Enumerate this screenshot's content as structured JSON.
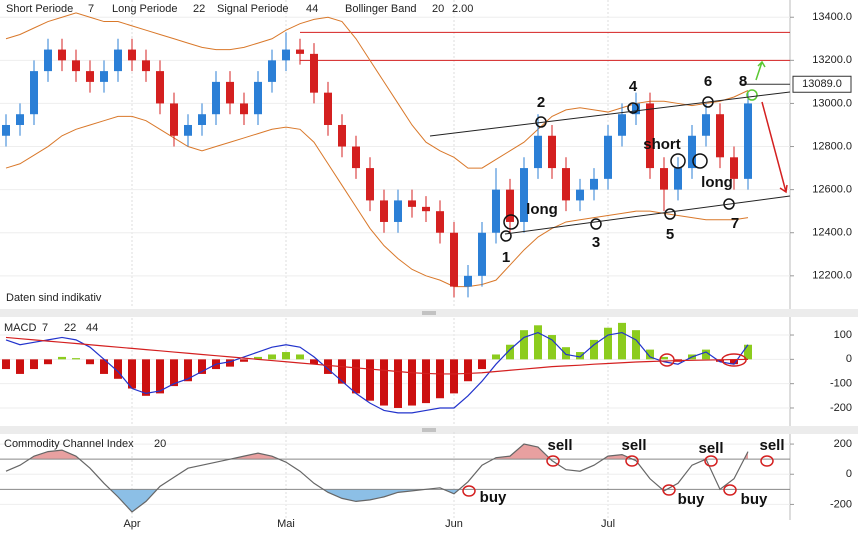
{
  "chart_data": [
    {
      "type": "candlestick",
      "header": [
        {
          "label": "Short Periode",
          "period": 7
        },
        {
          "label": "Long Periode",
          "period": 22
        },
        {
          "label": "Signal Periode",
          "period": 44
        },
        {
          "label": "Bollinger Band",
          "period": 20,
          "width": {
            "value": 2,
            "label": "2.00"
          }
        }
      ],
      "note": "Daten sind indikativ",
      "open": [
        12850,
        12900,
        12950,
        13150,
        13250,
        13200,
        13150,
        13100,
        13150,
        13250,
        13200,
        13150,
        13000,
        12850,
        12900,
        12950,
        13100,
        13000,
        12950,
        13100,
        13200,
        13250,
        13230,
        13050,
        12900,
        12800,
        12700,
        12550,
        12450,
        12550,
        12520,
        12500,
        12400,
        12150,
        12200,
        12400,
        12600,
        12450,
        12700,
        12850,
        12700,
        12550,
        12600,
        12650,
        12850,
        12950,
        13000,
        12700,
        12600,
        12700,
        12850,
        12950,
        12750,
        12650
      ],
      "high": [
        12950,
        13000,
        13200,
        13300,
        13300,
        13250,
        13200,
        13200,
        13300,
        13300,
        13250,
        13200,
        13050,
        12950,
        13000,
        13150,
        13150,
        13050,
        13150,
        13250,
        13330,
        13300,
        13280,
        13100,
        12950,
        12850,
        12750,
        12600,
        12600,
        12600,
        12570,
        12550,
        12450,
        12250,
        12450,
        12700,
        12650,
        12750,
        12950,
        12900,
        12750,
        12650,
        12700,
        12900,
        13000,
        13050,
        13050,
        12750,
        12750,
        12900,
        13000,
        13000,
        12800,
        13050
      ],
      "low": [
        12800,
        12850,
        12900,
        13100,
        13150,
        13100,
        13050,
        13050,
        13100,
        13150,
        13100,
        12950,
        12800,
        12800,
        12850,
        12900,
        12950,
        12900,
        12900,
        13050,
        13150,
        13180,
        13000,
        12850,
        12750,
        12650,
        12500,
        12400,
        12400,
        12470,
        12450,
        12350,
        12100,
        12100,
        12150,
        12350,
        12400,
        12400,
        12650,
        12650,
        12500,
        12500,
        12550,
        12600,
        12800,
        12900,
        12650,
        12500,
        12550,
        12650,
        12800,
        12700,
        12600,
        12600
      ],
      "close": [
        12900,
        12950,
        13150,
        13250,
        13200,
        13150,
        13100,
        13150,
        13250,
        13200,
        13150,
        13000,
        12850,
        12900,
        12950,
        13100,
        13000,
        12950,
        13100,
        13200,
        13250,
        13230,
        13050,
        12900,
        12800,
        12700,
        12550,
        12450,
        12550,
        12520,
        12500,
        12400,
        12150,
        12200,
        12400,
        12600,
        12450,
        12700,
        12850,
        12700,
        12550,
        12600,
        12650,
        12850,
        12950,
        13000,
        12700,
        12600,
        12700,
        12850,
        12950,
        12750,
        12650,
        13000
      ],
      "up_color": "#2b7fd6",
      "down_color": "#d42020",
      "bands": {
        "color": "#d9782a",
        "upper": [
          13300,
          13320,
          13350,
          13380,
          13400,
          13420,
          13400,
          13380,
          13380,
          13360,
          13340,
          13320,
          13300,
          13280,
          13260,
          13250,
          13250,
          13260,
          13280,
          13300,
          13340,
          13370,
          13390,
          13400,
          13380,
          13300,
          13200,
          13100,
          13000,
          12900,
          12820,
          12780,
          12750,
          12700,
          12700,
          12740,
          12780,
          12820,
          12880,
          12940,
          12970,
          12980,
          12970,
          12960,
          12980,
          13000,
          13010,
          13010,
          13000,
          12990,
          13000,
          13010,
          13030,
          13060
        ],
        "lower": [
          12700,
          12720,
          12760,
          12800,
          12850,
          12880,
          12900,
          12920,
          12940,
          12940,
          12920,
          12880,
          12840,
          12800,
          12780,
          12800,
          12820,
          12840,
          12860,
          12880,
          12890,
          12880,
          12820,
          12720,
          12620,
          12520,
          12420,
          12340,
          12280,
          12230,
          12200,
          12180,
          12150,
          12150,
          12160,
          12180,
          12250,
          12320,
          12380,
          12420,
          12450,
          12460,
          12470,
          12480,
          12490,
          12500,
          12500,
          12490,
          12480,
          12470,
          12460,
          12460,
          12460,
          12470
        ]
      },
      "hlines": [
        13330,
        13200
      ],
      "hline_color": "#d42020",
      "last_price": {
        "value": 13089,
        "label": "13089.0"
      },
      "annotations": [
        "1",
        "2",
        "3",
        "4",
        "5",
        "6",
        "7",
        "8",
        "short",
        "long",
        "long"
      ],
      "ylim": [
        12060,
        13480
      ],
      "yticks": [
        {
          "value": 12200,
          "label": "12200.0"
        },
        {
          "value": 12400,
          "label": "12400.0"
        },
        {
          "value": 12600,
          "label": "12600.0"
        },
        {
          "value": 12800,
          "label": "12800.0"
        },
        {
          "value": 13000,
          "label": "13000.0"
        },
        {
          "value": 13200,
          "label": "13200.0"
        },
        {
          "value": 13400,
          "label": "13400.0"
        }
      ]
    },
    {
      "type": "macd",
      "title": "MACD",
      "periods": [
        7,
        22,
        44
      ],
      "period_colors": [
        "#333333",
        "#d42020",
        "#d42020"
      ],
      "histogram": [
        -40,
        -60,
        -40,
        -20,
        10,
        5,
        -20,
        -60,
        -80,
        -120,
        -150,
        -140,
        -110,
        -90,
        -60,
        -40,
        -30,
        -10,
        10,
        20,
        30,
        20,
        -20,
        -60,
        -100,
        -140,
        -170,
        -190,
        -200,
        -190,
        -180,
        -160,
        -140,
        -90,
        -40,
        20,
        60,
        120,
        140,
        100,
        50,
        30,
        80,
        130,
        150,
        120,
        40,
        10,
        -10,
        20,
        40,
        -10,
        -20,
        60
      ],
      "pos_color": "#8ccc1e",
      "neg_color": "#cc1010",
      "series": [
        {
          "color": "#2233cc",
          "values": [
            80,
            60,
            70,
            80,
            90,
            80,
            50,
            0,
            -50,
            -120,
            -140,
            -130,
            -100,
            -80,
            -50,
            -20,
            -10,
            10,
            30,
            50,
            60,
            50,
            10,
            -40,
            -90,
            -140,
            -180,
            -210,
            -220,
            -220,
            -210,
            -200,
            -200,
            -150,
            -90,
            -20,
            40,
            90,
            110,
            80,
            20,
            10,
            60,
            100,
            110,
            80,
            10,
            -10,
            -20,
            10,
            30,
            -10,
            -20,
            60
          ]
        },
        {
          "color": "#d42020",
          "values": [
            90,
            85,
            80,
            75,
            70,
            65,
            60,
            55,
            50,
            45,
            40,
            35,
            30,
            25,
            20,
            15,
            10,
            5,
            0,
            -5,
            -10,
            -15,
            -20,
            -25,
            -30,
            -35,
            -40,
            -45,
            -50,
            -55,
            -58,
            -60,
            -60,
            -58,
            -55,
            -50,
            -45,
            -40,
            -35,
            -30,
            -27,
            -24,
            -20,
            -17,
            -14,
            -11,
            -9,
            -7,
            -5,
            -4,
            -3,
            -2,
            -1,
            0
          ]
        }
      ],
      "ylim": [
        -270,
        170
      ],
      "yticks": [
        100,
        0,
        -100,
        -200
      ]
    },
    {
      "type": "cci",
      "title": "Commodity Channel Index",
      "period": 20,
      "color": "#666666",
      "values": [
        20,
        60,
        120,
        150,
        160,
        120,
        40,
        -60,
        -150,
        -250,
        -180,
        -80,
        -20,
        40,
        60,
        80,
        100,
        120,
        140,
        120,
        80,
        20,
        -60,
        -120,
        -160,
        -180,
        -170,
        -150,
        -120,
        -110,
        -100,
        -90,
        -130,
        -50,
        60,
        110,
        120,
        200,
        180,
        90,
        30,
        20,
        60,
        120,
        130,
        90,
        -30,
        -110,
        -60,
        60,
        100,
        -100,
        -30,
        150
      ],
      "levels": [
        100,
        -100
      ],
      "over_color": "#e8a0a0",
      "under_color": "#8cbfe6",
      "signals": [
        "buy",
        "sell",
        "sell",
        "buy",
        "sell",
        "buy",
        "sell"
      ],
      "categories": [
        null,
        null,
        null,
        null,
        null,
        null,
        null,
        null,
        null,
        "Apr",
        null,
        null,
        null,
        null,
        null,
        null,
        null,
        null,
        null,
        null,
        "Mai",
        null,
        null,
        null,
        null,
        null,
        null,
        null,
        null,
        null,
        null,
        null,
        "Jun",
        null,
        null,
        null,
        null,
        null,
        null,
        null,
        null,
        null,
        null,
        "Jul",
        null,
        null,
        null,
        null,
        null,
        null,
        null,
        null,
        null,
        null
      ],
      "ylim": [
        -290,
        280
      ],
      "yticks": [
        200,
        0,
        -200
      ]
    }
  ]
}
